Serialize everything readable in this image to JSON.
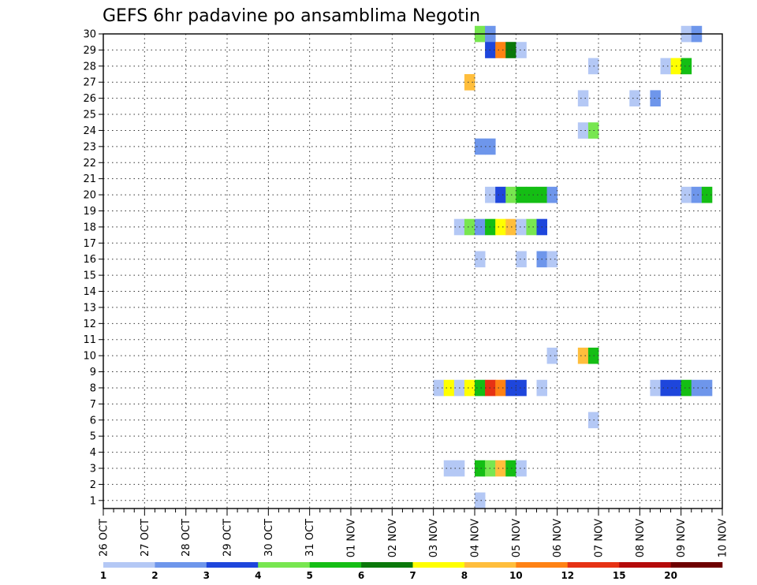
{
  "chart_data": {
    "type": "heatmap",
    "title": "GEFS 6hr padavine po ansamblima Negotin",
    "x_ticks": [
      "26 OCT",
      "27 OCT",
      "28 OCT",
      "29 OCT",
      "30 OCT",
      "31 OCT",
      "01 NOV",
      "02 NOV",
      "03 NOV",
      "04 NOV",
      "05 NOV",
      "06 NOV",
      "07 NOV",
      "08 NOV",
      "09 NOV",
      "10 NOV"
    ],
    "y_ticks": [
      "1",
      "2",
      "3",
      "4",
      "5",
      "6",
      "7",
      "8",
      "9",
      "10",
      "11",
      "12",
      "13",
      "14",
      "15",
      "16",
      "17",
      "18",
      "19",
      "20",
      "21",
      "22",
      "23",
      "24",
      "25",
      "26",
      "27",
      "28",
      "29",
      "30"
    ],
    "grid": true,
    "colorbar": {
      "labels": [
        "1",
        "2",
        "3",
        "4",
        "5",
        "6",
        "7",
        "8",
        "10",
        "12",
        "15",
        "20"
      ],
      "colors": [
        "#b4c8f5",
        "#6e96eb",
        "#1e46dc",
        "#78e650",
        "#14be14",
        "#0a780a",
        "#ffff00",
        "#ffbe3c",
        "#ff8214",
        "#e63214",
        "#b40a0a",
        "#6e0000"
      ]
    },
    "x_unit": "6h steps from 26 OCT 00Z",
    "cells": [
      [
        30,
        36,
        4
      ],
      [
        30,
        37,
        2
      ],
      [
        30,
        56,
        1
      ],
      [
        30,
        57,
        2
      ],
      [
        29,
        37,
        3
      ],
      [
        29,
        38,
        9
      ],
      [
        29,
        39,
        6
      ],
      [
        29,
        40,
        1
      ],
      [
        28,
        47,
        1
      ],
      [
        28,
        54,
        1
      ],
      [
        28,
        55,
        7
      ],
      [
        28,
        56,
        5
      ],
      [
        27,
        35,
        8
      ],
      [
        26,
        46,
        1
      ],
      [
        26,
        51,
        1
      ],
      [
        26,
        53,
        2
      ],
      [
        24,
        46,
        1
      ],
      [
        24,
        47,
        4
      ],
      [
        23,
        36,
        2
      ],
      [
        23,
        37,
        2
      ],
      [
        20,
        37,
        1
      ],
      [
        20,
        38,
        3
      ],
      [
        20,
        39,
        4
      ],
      [
        20,
        40,
        5
      ],
      [
        20,
        41,
        5
      ],
      [
        20,
        42,
        5
      ],
      [
        20,
        43,
        2
      ],
      [
        20,
        56,
        1
      ],
      [
        20,
        57,
        2
      ],
      [
        20,
        58,
        5
      ],
      [
        18,
        34,
        1
      ],
      [
        18,
        35,
        4
      ],
      [
        18,
        36,
        2
      ],
      [
        18,
        37,
        5
      ],
      [
        18,
        38,
        7
      ],
      [
        18,
        39,
        8
      ],
      [
        18,
        40,
        1
      ],
      [
        18,
        41,
        4
      ],
      [
        18,
        42,
        3
      ],
      [
        16,
        36,
        1
      ],
      [
        16,
        40,
        1
      ],
      [
        16,
        42,
        2
      ],
      [
        16,
        43,
        1
      ],
      [
        10,
        43,
        1
      ],
      [
        10,
        46,
        8
      ],
      [
        10,
        47,
        5
      ],
      [
        8,
        32,
        1
      ],
      [
        8,
        33,
        7
      ],
      [
        8,
        34,
        1
      ],
      [
        8,
        35,
        7
      ],
      [
        8,
        36,
        5
      ],
      [
        8,
        37,
        10
      ],
      [
        8,
        38,
        9
      ],
      [
        8,
        39,
        3
      ],
      [
        8,
        40,
        3
      ],
      [
        8,
        42,
        1
      ],
      [
        8,
        53,
        1
      ],
      [
        8,
        54,
        3
      ],
      [
        8,
        55,
        3
      ],
      [
        8,
        56,
        5
      ],
      [
        8,
        57,
        2
      ],
      [
        8,
        58,
        2
      ],
      [
        6,
        47,
        1
      ],
      [
        3,
        33,
        1
      ],
      [
        3,
        34,
        1
      ],
      [
        3,
        36,
        5
      ],
      [
        3,
        37,
        4
      ],
      [
        3,
        38,
        8
      ],
      [
        3,
        39,
        5
      ],
      [
        3,
        40,
        1
      ],
      [
        1,
        36,
        1
      ]
    ]
  }
}
